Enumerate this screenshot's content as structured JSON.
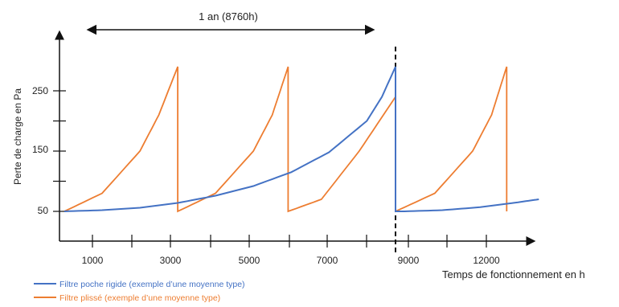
{
  "chart_data": {
    "type": "line",
    "title": "",
    "xlabel": "Temps de fonctionnement en h",
    "ylabel": "Perte de charge en Pa",
    "x_tick_labels": [
      "1000",
      "3000",
      "5000",
      "7000",
      "9000",
      "12000"
    ],
    "y_tick_labels": [
      "50",
      "150",
      "250"
    ],
    "annotations": {
      "period_label": "1 an (8760h)",
      "period_start_h": 500,
      "period_end_h": 8000,
      "replacement_marker_h": 8760
    },
    "legend_position": "bottom-left",
    "series": [
      {
        "name": "Filtre poche rigide (exemple d’une moyenne type)",
        "color": "#4472C4",
        "points": [
          [
            0,
            50
          ],
          [
            1000,
            52
          ],
          [
            2000,
            56
          ],
          [
            3000,
            64
          ],
          [
            4000,
            76
          ],
          [
            5000,
            92
          ],
          [
            6000,
            115
          ],
          [
            7000,
            148
          ],
          [
            8000,
            200
          ],
          [
            8400,
            240
          ],
          [
            8760,
            290
          ],
          [
            8760,
            50
          ],
          [
            9000,
            50
          ],
          [
            10000,
            52
          ],
          [
            11000,
            57
          ],
          [
            12000,
            65
          ],
          [
            12550,
            70
          ]
        ]
      },
      {
        "name": "Filtre plissé (exemple d’une moyenne type)",
        "color": "#ED7D31",
        "points": [
          [
            0,
            50
          ],
          [
            1000,
            80
          ],
          [
            2000,
            150
          ],
          [
            2500,
            210
          ],
          [
            3000,
            290
          ],
          [
            3000,
            50
          ],
          [
            4000,
            80
          ],
          [
            5000,
            150
          ],
          [
            5500,
            210
          ],
          [
            5920,
            290
          ],
          [
            5920,
            50
          ],
          [
            6800,
            70
          ],
          [
            7800,
            150
          ],
          [
            8760,
            240
          ],
          [
            8760,
            50
          ],
          [
            9800,
            80
          ],
          [
            10800,
            150
          ],
          [
            11300,
            210
          ],
          [
            11700,
            290
          ],
          [
            11700,
            50
          ]
        ]
      }
    ]
  }
}
